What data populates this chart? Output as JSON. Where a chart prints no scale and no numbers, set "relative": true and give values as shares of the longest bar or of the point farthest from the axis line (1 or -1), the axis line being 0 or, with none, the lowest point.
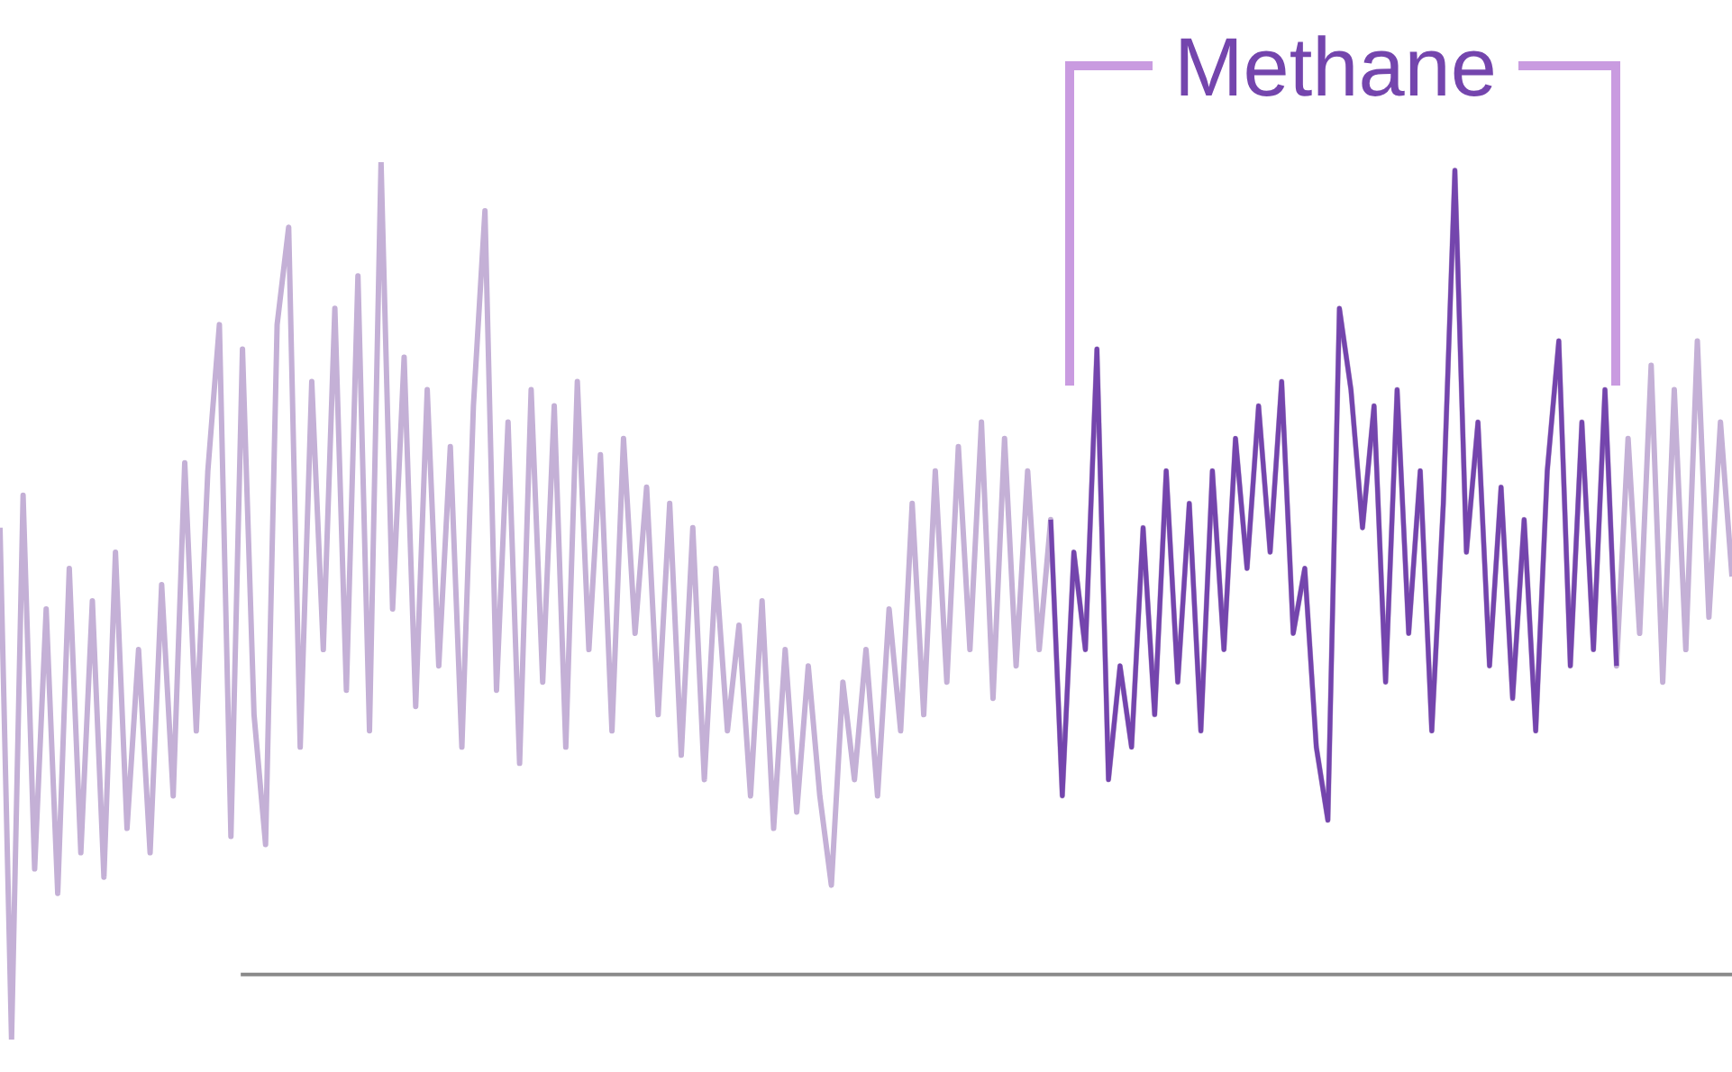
{
  "chart_data": {
    "type": "line",
    "relative": true,
    "categories": [
      null,
      null,
      null,
      null,
      null,
      null,
      null,
      null,
      null,
      null,
      null,
      null,
      null,
      null,
      null,
      null,
      null,
      null,
      null,
      null,
      null,
      null,
      null,
      null,
      null,
      null,
      null,
      null,
      null,
      null,
      null,
      null,
      null,
      null,
      null,
      null,
      null,
      null,
      null,
      null,
      null,
      null,
      null,
      null,
      null,
      null,
      null,
      null,
      null,
      null,
      null,
      null,
      null,
      null,
      null,
      null,
      null,
      null,
      null,
      null,
      null,
      null,
      null,
      null,
      null,
      null,
      null,
      null,
      null,
      null,
      null,
      null,
      null,
      null,
      null,
      null,
      null,
      null,
      null,
      null,
      null,
      null,
      null,
      null,
      null,
      null,
      null,
      null,
      null,
      null,
      null,
      null,
      null,
      null,
      null,
      null,
      null,
      null,
      null,
      null,
      null,
      null,
      null,
      null,
      null,
      null,
      null,
      null,
      null,
      null,
      null,
      null,
      null,
      null,
      null,
      null,
      null,
      null,
      null,
      null,
      null,
      null,
      null,
      null,
      null,
      null,
      null,
      null,
      null,
      null,
      null,
      null,
      null,
      null,
      null,
      null,
      null,
      null,
      null,
      null,
      null,
      null,
      null,
      null,
      null,
      null,
      null,
      null,
      null,
      null,
      null
    ],
    "series": [
      {
        "color": "#c4b0d6",
        "values": [
          0.55,
          -0.08,
          0.59,
          0.13,
          0.45,
          0.1,
          0.5,
          0.15,
          0.46,
          0.12,
          0.52,
          0.18,
          0.4,
          0.15,
          0.48,
          0.22,
          0.63,
          0.3,
          0.62,
          0.8,
          0.17,
          0.77,
          0.32,
          0.16,
          0.8,
          0.92,
          0.28,
          0.73,
          0.4,
          0.82,
          0.35,
          0.86,
          0.3,
          1.0,
          0.45,
          0.76,
          0.33,
          0.72,
          0.38,
          0.65,
          0.28,
          0.7,
          0.94,
          0.35,
          0.68,
          0.26,
          0.72,
          0.36,
          0.7,
          0.28,
          0.73,
          0.4,
          0.64,
          0.3,
          0.66,
          0.42,
          0.6,
          0.32,
          0.58,
          0.27,
          0.55,
          0.24,
          0.5,
          0.3,
          0.43,
          0.22,
          0.46,
          0.18,
          0.4,
          0.2,
          0.38,
          0.22,
          0.11,
          0.36,
          0.24,
          0.4,
          0.22,
          0.45,
          0.3,
          0.58,
          0.32,
          0.62,
          0.36,
          0.65,
          0.4,
          0.68,
          0.34,
          0.66,
          0.38,
          0.62,
          0.4,
          0.56,
          0.22,
          0.52,
          0.4,
          0.77,
          0.24,
          0.38,
          0.28,
          0.55,
          0.32,
          0.62,
          0.36,
          0.58,
          0.3,
          0.62,
          0.4,
          0.66,
          0.5,
          0.7,
          0.52,
          0.73,
          0.42,
          0.5,
          0.28,
          0.19,
          0.82,
          0.72,
          0.55,
          0.7,
          0.36,
          0.72,
          0.42,
          0.62,
          0.3,
          0.58,
          0.99,
          0.52,
          0.68,
          0.38,
          0.6,
          0.34,
          0.56,
          0.3,
          0.62,
          0.78,
          0.38,
          0.68,
          0.4,
          0.72,
          0.38,
          0.66,
          0.42,
          0.75,
          0.36,
          0.72,
          0.4,
          0.78,
          0.44,
          0.68,
          0.49
        ]
      },
      {
        "name": "Methane",
        "color": "#7445ad",
        "values": [
          null,
          null,
          null,
          null,
          null,
          null,
          null,
          null,
          null,
          null,
          null,
          null,
          null,
          null,
          null,
          null,
          null,
          null,
          null,
          null,
          null,
          null,
          null,
          null,
          null,
          null,
          null,
          null,
          null,
          null,
          null,
          null,
          null,
          null,
          null,
          null,
          null,
          null,
          null,
          null,
          null,
          null,
          null,
          null,
          null,
          null,
          null,
          null,
          null,
          null,
          null,
          null,
          null,
          null,
          null,
          null,
          null,
          null,
          null,
          null,
          null,
          null,
          null,
          null,
          null,
          null,
          null,
          null,
          null,
          null,
          null,
          null,
          null,
          null,
          null,
          null,
          null,
          null,
          null,
          null,
          null,
          null,
          null,
          null,
          null,
          null,
          null,
          null,
          null,
          null,
          null,
          0.56,
          0.22,
          0.52,
          0.4,
          0.77,
          0.24,
          0.38,
          0.28,
          0.55,
          0.32,
          0.62,
          0.36,
          0.58,
          0.3,
          0.62,
          0.4,
          0.66,
          0.5,
          0.7,
          0.52,
          0.73,
          0.42,
          0.5,
          0.28,
          0.19,
          0.82,
          0.72,
          0.55,
          0.7,
          0.36,
          0.72,
          0.42,
          0.62,
          0.3,
          0.58,
          0.99,
          0.52,
          0.68,
          0.38,
          0.6,
          0.34,
          0.56,
          0.3,
          0.62,
          0.78,
          0.38,
          0.68,
          0.4,
          0.72,
          0.38,
          null,
          null,
          null,
          null,
          null,
          null,
          null,
          null,
          null,
          null
        ]
      }
    ]
  }
}
